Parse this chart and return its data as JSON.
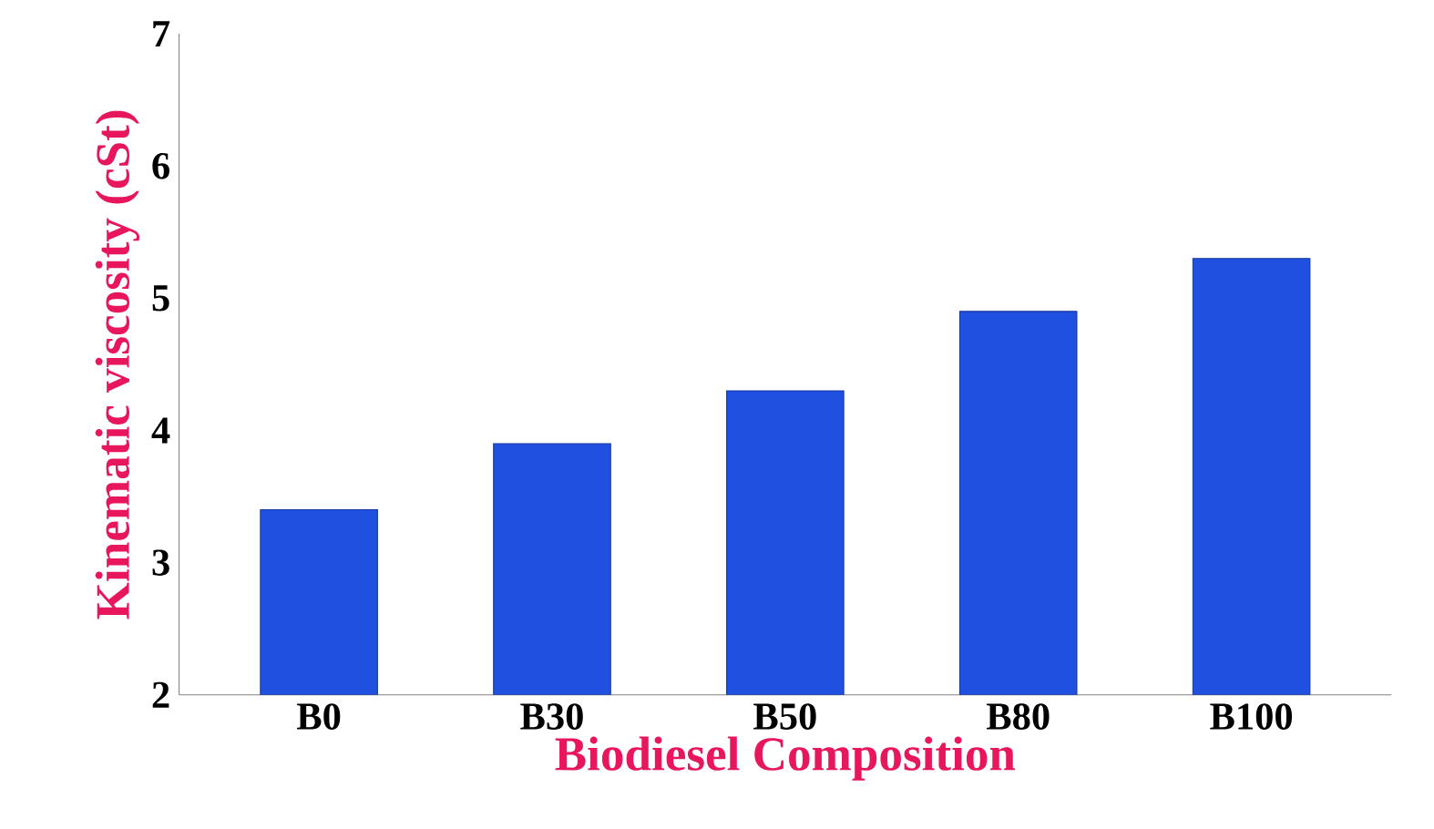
{
  "chart_data": {
    "type": "bar",
    "xlabel": "Biodiesel Composition",
    "ylabel": "Kinematic viscosity (cSt)",
    "categories": [
      "B0",
      "B30",
      "B50",
      "B80",
      "B100"
    ],
    "values": [
      3.4,
      3.9,
      4.3,
      4.9,
      5.3
    ],
    "color": "#1f50e0",
    "ylim": [
      2,
      7
    ],
    "yticks": [
      2,
      3,
      4,
      5,
      6,
      7
    ],
    "grid": false
  }
}
